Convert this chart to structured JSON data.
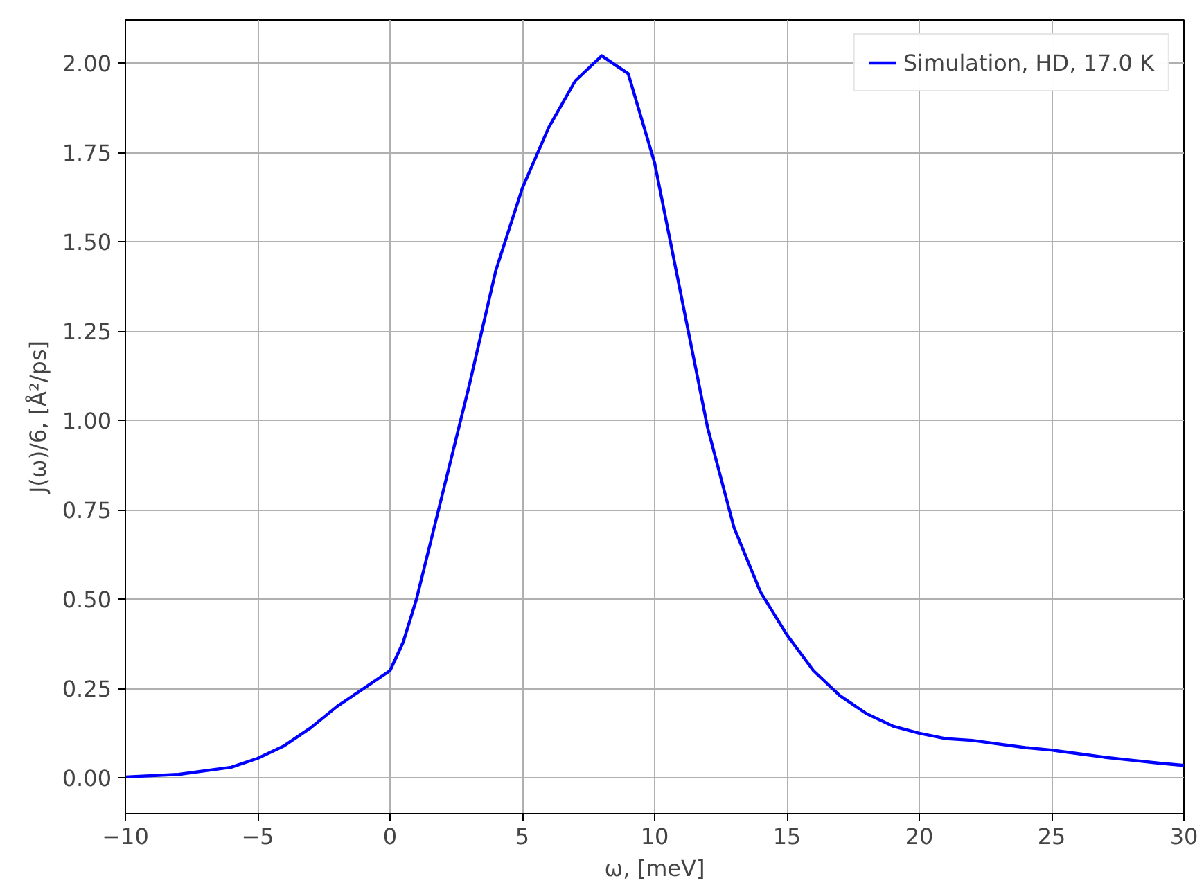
{
  "chart_data": {
    "type": "line",
    "xlabel": "ω, [meV]",
    "ylabel": "J(ω)/6, [Å²/ps]",
    "xlim": [
      -10,
      30
    ],
    "xticks": [
      {
        "value": -10,
        "label": "−10"
      },
      {
        "value": -5,
        "label": "−5"
      },
      0,
      5,
      10,
      15,
      20,
      25,
      30
    ],
    "ylim": [
      -0.1,
      2.12
    ],
    "yticks": [
      {
        "value": 0,
        "label": "0.00"
      },
      {
        "value": 0.25,
        "label": "0.25"
      },
      {
        "value": 0.5,
        "label": "0.50"
      },
      {
        "value": 0.75,
        "label": "0.75"
      },
      {
        "value": 1,
        "label": "1.00"
      },
      {
        "value": 1.25,
        "label": "1.25"
      },
      {
        "value": 1.5,
        "label": "1.50"
      },
      {
        "value": 1.75,
        "label": "1.75"
      },
      {
        "value": 2,
        "label": "2.00"
      }
    ],
    "grid": true,
    "legend": "top right",
    "line_style": "solid",
    "x": [
      -10,
      -8,
      -6,
      -5,
      -4,
      -3,
      -2,
      -1,
      0,
      0.5,
      1,
      2,
      3,
      4,
      5,
      6,
      7,
      8,
      9,
      10,
      11,
      12,
      13,
      14,
      15,
      16,
      17,
      18,
      19,
      20,
      21,
      22,
      23,
      24,
      25,
      26,
      27,
      28,
      29,
      30
    ],
    "series": [
      {
        "name": "Simulation, HD, 17.0 K",
        "color": "#0000ff",
        "values": [
          0.003,
          0.01,
          0.03,
          0.055,
          0.09,
          0.14,
          0.2,
          0.25,
          0.3,
          0.38,
          0.5,
          0.8,
          1.1,
          1.42,
          1.65,
          1.82,
          1.95,
          2.02,
          1.97,
          1.72,
          1.35,
          0.98,
          0.7,
          0.52,
          0.4,
          0.3,
          0.23,
          0.18,
          0.145,
          0.125,
          0.11,
          0.105,
          0.095,
          0.085,
          0.078,
          0.068,
          0.058,
          0.05,
          0.042,
          0.035
        ]
      }
    ]
  }
}
